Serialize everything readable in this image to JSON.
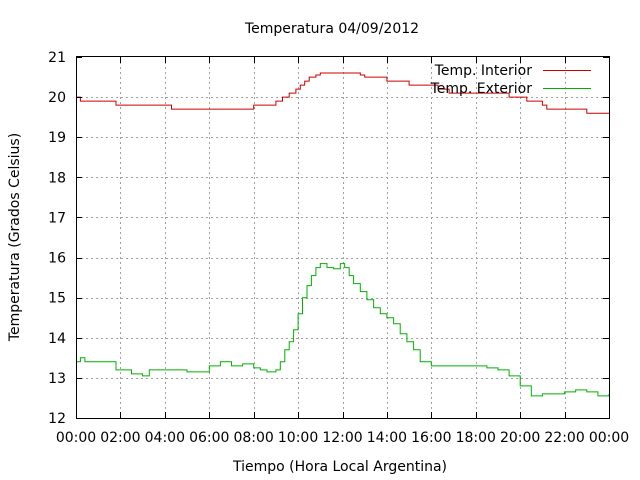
{
  "chart_data": {
    "type": "line",
    "title": "Temperatura 04/09/2012",
    "xlabel": "Tiempo (Hora Local Argentina)",
    "ylabel": "Temperatura (Grados Celsius)",
    "x_tick_labels": [
      "00:00",
      "02:00",
      "04:00",
      "06:00",
      "08:00",
      "10:00",
      "12:00",
      "14:00",
      "16:00",
      "18:00",
      "20:00",
      "22:00",
      "00:00"
    ],
    "xlim_hours": [
      0,
      24
    ],
    "ylim": [
      12,
      21
    ],
    "y_ticks": [
      12,
      13,
      14,
      15,
      16,
      17,
      18,
      19,
      20,
      21
    ],
    "grid": true,
    "legend_position": "top-right",
    "series": [
      {
        "name": "Temp. Interior",
        "color": "#cc0000",
        "step": true,
        "x": [
          0,
          0.2,
          1.8,
          4.3,
          8.0,
          9.0,
          9.3,
          9.6,
          9.9,
          10.1,
          10.3,
          10.5,
          10.8,
          11.0,
          11.3,
          12.8,
          13.0,
          14.0,
          15.0,
          16.3,
          16.8,
          19.5,
          20.3,
          21.0,
          21.2,
          23.0,
          23.4,
          24.0
        ],
        "values": [
          20.0,
          19.9,
          19.8,
          19.7,
          19.8,
          19.9,
          20.0,
          20.1,
          20.2,
          20.3,
          20.4,
          20.5,
          20.55,
          20.6,
          20.6,
          20.55,
          20.5,
          20.4,
          20.3,
          20.2,
          20.1,
          20.0,
          19.9,
          19.8,
          19.7,
          19.6,
          19.6,
          19.6
        ]
      },
      {
        "name": "Temp. Exterior",
        "color": "#00b000",
        "step": true,
        "x": [
          0,
          0.2,
          0.4,
          1.0,
          1.8,
          2.5,
          3.0,
          3.3,
          4.5,
          5.0,
          6.0,
          6.5,
          7.0,
          7.5,
          8.0,
          8.3,
          8.6,
          9.0,
          9.2,
          9.4,
          9.6,
          9.8,
          10.0,
          10.2,
          10.4,
          10.6,
          10.8,
          11.0,
          11.3,
          11.6,
          11.9,
          12.1,
          12.3,
          12.5,
          12.8,
          13.1,
          13.4,
          13.7,
          14.0,
          14.3,
          14.6,
          14.9,
          15.2,
          15.5,
          16.0,
          16.5,
          17.0,
          18.5,
          19.0,
          19.5,
          20.0,
          20.5,
          21.0,
          22.0,
          22.5,
          23.0,
          23.5,
          24.0
        ],
        "values": [
          13.4,
          13.5,
          13.4,
          13.4,
          13.2,
          13.1,
          13.05,
          13.2,
          13.2,
          13.15,
          13.3,
          13.4,
          13.3,
          13.35,
          13.25,
          13.2,
          13.15,
          13.2,
          13.4,
          13.7,
          13.9,
          14.2,
          14.6,
          15.0,
          15.3,
          15.55,
          15.75,
          15.85,
          15.75,
          15.72,
          15.85,
          15.75,
          15.55,
          15.35,
          15.15,
          14.95,
          14.75,
          14.6,
          14.5,
          14.35,
          14.1,
          13.9,
          13.7,
          13.4,
          13.3,
          13.3,
          13.3,
          13.25,
          13.2,
          13.05,
          12.8,
          12.55,
          12.6,
          12.65,
          12.7,
          12.65,
          12.55,
          12.6
        ]
      }
    ]
  }
}
